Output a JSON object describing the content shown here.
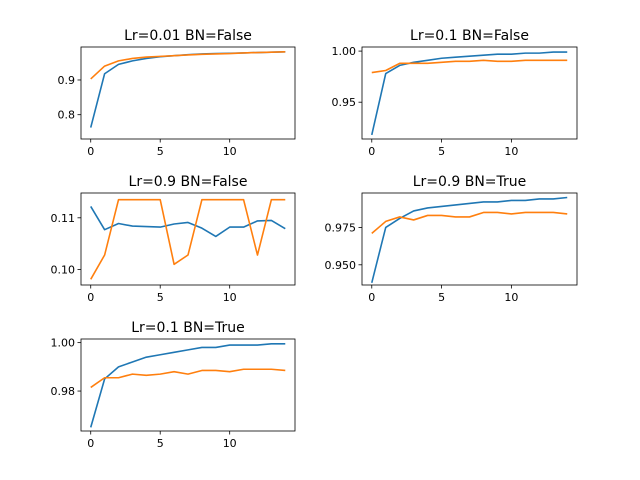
{
  "chart_data": [
    {
      "type": "line",
      "title": "Lr=0.01   BN=False",
      "x": [
        0,
        1,
        2,
        3,
        4,
        5,
        6,
        7,
        8,
        9,
        10,
        11,
        12,
        13,
        14
      ],
      "xlim": [
        -0.7,
        14.7
      ],
      "ylim": [
        0.73,
        0.995
      ],
      "xticks": [
        0,
        5,
        10
      ],
      "yticks": [
        0.8,
        0.9
      ],
      "ytick_labels": [
        "0.8",
        "0.9"
      ],
      "series": [
        {
          "color": "#1f77b4",
          "values": [
            0.763,
            0.918,
            0.945,
            0.955,
            0.962,
            0.967,
            0.97,
            0.973,
            0.975,
            0.976,
            0.977,
            0.978,
            0.979,
            0.98,
            0.981
          ]
        },
        {
          "color": "#ff7f0e",
          "values": [
            0.903,
            0.94,
            0.955,
            0.962,
            0.966,
            0.968,
            0.97,
            0.972,
            0.974,
            0.975,
            0.976,
            0.978,
            0.979,
            0.98,
            0.981
          ]
        }
      ]
    },
    {
      "type": "line",
      "title": "Lr=0.1   BN=False",
      "x": [
        0,
        1,
        2,
        3,
        4,
        5,
        6,
        7,
        8,
        9,
        10,
        11,
        12,
        13,
        14
      ],
      "xlim": [
        -0.7,
        14.7
      ],
      "ylim": [
        0.914,
        1.004
      ],
      "xticks": [
        0,
        5,
        10
      ],
      "yticks": [
        0.95,
        1.0
      ],
      "ytick_labels": [
        "0.95",
        "1.00"
      ],
      "series": [
        {
          "color": "#1f77b4",
          "values": [
            0.918,
            0.978,
            0.986,
            0.989,
            0.991,
            0.993,
            0.994,
            0.995,
            0.996,
            0.997,
            0.997,
            0.998,
            0.998,
            0.999,
            0.999
          ]
        },
        {
          "color": "#ff7f0e",
          "values": [
            0.979,
            0.981,
            0.988,
            0.988,
            0.988,
            0.989,
            0.99,
            0.99,
            0.991,
            0.99,
            0.99,
            0.991,
            0.991,
            0.991,
            0.991
          ]
        }
      ]
    },
    {
      "type": "line",
      "title": "Lr=0.9   BN=False",
      "x": [
        0,
        1,
        2,
        3,
        4,
        5,
        6,
        7,
        8,
        9,
        10,
        11,
        12,
        13,
        14
      ],
      "xlim": [
        -0.7,
        14.7
      ],
      "ylim": [
        0.097,
        0.1148
      ],
      "xticks": [
        0,
        5,
        10
      ],
      "yticks": [
        0.1,
        0.11
      ],
      "ytick_labels": [
        "0.10",
        "0.11"
      ],
      "series": [
        {
          "color": "#1f77b4",
          "values": [
            0.1122,
            0.1077,
            0.1089,
            0.1084,
            0.1083,
            0.1082,
            0.1088,
            0.1091,
            0.108,
            0.1064,
            0.1082,
            0.1082,
            0.1094,
            0.1095,
            0.1079
          ]
        },
        {
          "color": "#ff7f0e",
          "values": [
            0.0981,
            0.1028,
            0.1135,
            0.1135,
            0.1135,
            0.1135,
            0.101,
            0.1028,
            0.1135,
            0.1135,
            0.1135,
            0.1135,
            0.1028,
            0.1135,
            0.1135
          ]
        }
      ]
    },
    {
      "type": "line",
      "title": "Lr=0.9   BN=True",
      "x": [
        0,
        1,
        2,
        3,
        4,
        5,
        6,
        7,
        8,
        9,
        10,
        11,
        12,
        13,
        14
      ],
      "xlim": [
        -0.7,
        14.7
      ],
      "ylim": [
        0.9365,
        0.998
      ],
      "xticks": [
        0,
        5,
        10
      ],
      "yticks": [
        0.95,
        0.975
      ],
      "ytick_labels": [
        "0.950",
        "0.975"
      ],
      "series": [
        {
          "color": "#1f77b4",
          "values": [
            0.938,
            0.975,
            0.981,
            0.986,
            0.988,
            0.989,
            0.99,
            0.991,
            0.992,
            0.992,
            0.993,
            0.993,
            0.994,
            0.994,
            0.995
          ]
        },
        {
          "color": "#ff7f0e",
          "values": [
            0.971,
            0.979,
            0.982,
            0.98,
            0.983,
            0.983,
            0.982,
            0.982,
            0.985,
            0.985,
            0.984,
            0.985,
            0.985,
            0.985,
            0.984
          ]
        }
      ]
    },
    {
      "type": "line",
      "title": "Lr=0.1   BN=True",
      "x": [
        0,
        1,
        2,
        3,
        4,
        5,
        6,
        7,
        8,
        9,
        10,
        11,
        12,
        13,
        14
      ],
      "xlim": [
        -0.7,
        14.7
      ],
      "ylim": [
        0.9635,
        1.0015
      ],
      "xticks": [
        0,
        5,
        10
      ],
      "yticks": [
        0.98,
        1.0
      ],
      "ytick_labels": [
        "0.98",
        "1.00"
      ],
      "series": [
        {
          "color": "#1f77b4",
          "values": [
            0.965,
            0.985,
            0.99,
            0.992,
            0.994,
            0.995,
            0.996,
            0.997,
            0.998,
            0.998,
            0.999,
            0.999,
            0.999,
            0.9995,
            0.9995
          ]
        },
        {
          "color": "#ff7f0e",
          "values": [
            0.9815,
            0.9855,
            0.9855,
            0.987,
            0.9865,
            0.987,
            0.988,
            0.987,
            0.9885,
            0.9885,
            0.988,
            0.989,
            0.989,
            0.989,
            0.9885
          ]
        }
      ]
    }
  ]
}
